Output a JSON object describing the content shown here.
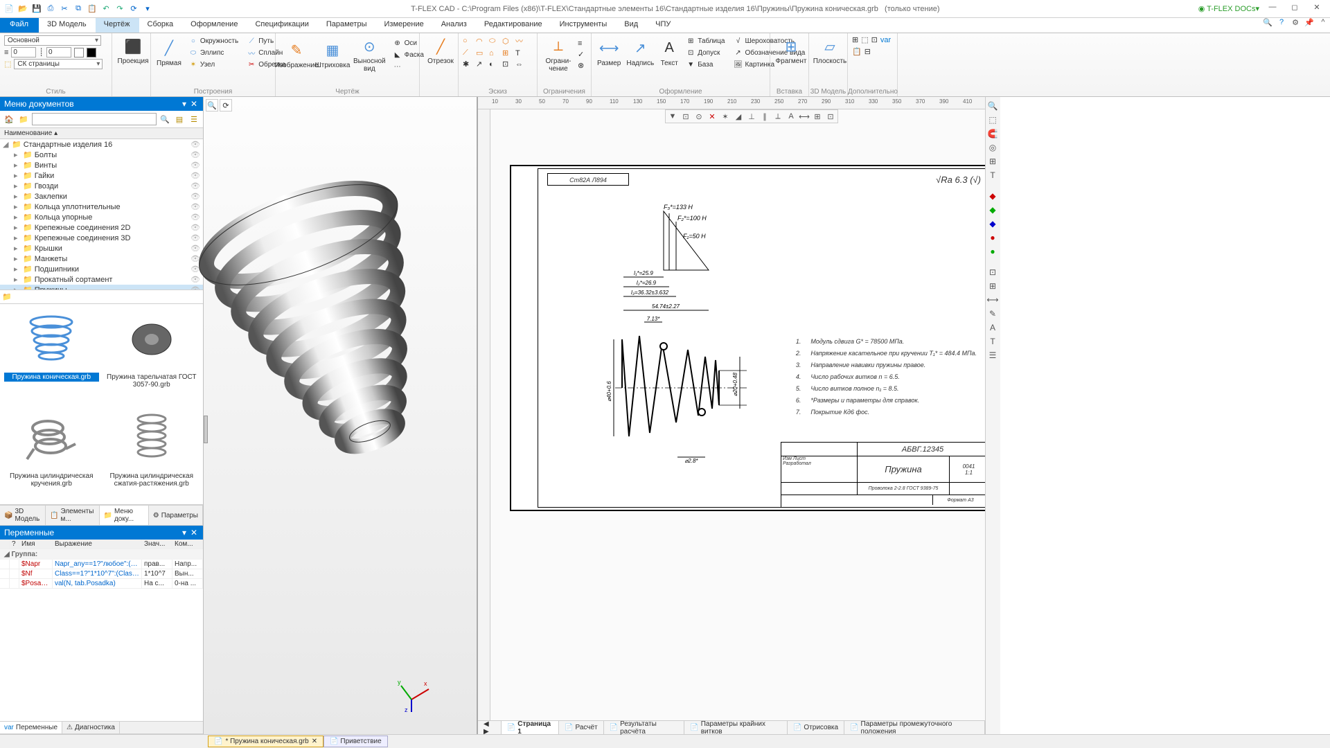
{
  "titlebar": {
    "app": "T-FLEX CAD",
    "path": "C:\\Program Files (x86)\\T-FLEX\\Стандартные элементы 16\\Стандартные изделия 16\\Пружины\\Пружина коническая.grb",
    "readonly": "(только чтение)",
    "docs": "T-FLEX DOCs"
  },
  "tabs": {
    "file": "Файл",
    "items": [
      "3D Модель",
      "Чертёж",
      "Сборка",
      "Оформление",
      "Спецификации",
      "Параметры",
      "Измерение",
      "Анализ",
      "Редактирование",
      "Инструменты",
      "Вид",
      "ЧПУ"
    ],
    "active": 1
  },
  "ribbon": {
    "style": {
      "label": "Стиль",
      "main": "Основной",
      "layer": "СК страницы",
      "thick1": "0",
      "thick2": "0"
    },
    "proj": {
      "label": "Проекция"
    },
    "build": {
      "label": "Построения",
      "line": "Прямая",
      "circle": "Окружность",
      "ellipse": "Эллипс",
      "node": "Узел",
      "path": "Путь",
      "spline": "Сплайн",
      "trim": "Обрезка"
    },
    "sketch": {
      "label": "Чертёж",
      "image": "Изображение",
      "hatch": "Штриховка",
      "dimview": "Выносной вид",
      "axis": "Оси",
      "chamfer": "Фаска"
    },
    "seg": {
      "label": "Отрезок"
    },
    "esk": {
      "label": "Эскиз"
    },
    "constr": {
      "label": "Ограничения",
      "limit": "Ограни-\nчение"
    },
    "format": {
      "label": "Оформление",
      "dim": "Размер",
      "note": "Надпись",
      "text": "Текст",
      "table": "Таблица",
      "tol": "Допуск",
      "base": "База",
      "rough": "Шероховатость",
      "mark": "Обозначение вида",
      "pic": "Картинка"
    },
    "insert": {
      "label": "Вставка",
      "frag": "Фрагмент"
    },
    "m3d": {
      "label": "3D Модель",
      "plane": "Плоскость"
    },
    "extra": {
      "label": "Дополнительно"
    }
  },
  "docmenu": {
    "title": "Меню документов",
    "colname": "Наименование",
    "root": "Стандартные изделия 16",
    "folders": [
      "Болты",
      "Винты",
      "Гайки",
      "Гвозди",
      "Заклепки",
      "Кольца уплотнительные",
      "Кольца упорные",
      "Крепежные соединения 2D",
      "Крепежные соединения 3D",
      "Крышки",
      "Манжеты",
      "Подшипники",
      "Прокатный сортамент",
      "Пружины"
    ],
    "thumbs": [
      {
        "cap": "Пружина коническая.grb",
        "sel": true
      },
      {
        "cap": "Пружина тарельчатая ГОСТ 3057-90.grb"
      },
      {
        "cap": "Пружина цилиндрическая кручения.grb"
      },
      {
        "cap": "Пружина цилиндрическая сжатия-растяжения.grb"
      }
    ],
    "btabs": [
      "3D Модель",
      "Элементы м...",
      "Меню доку...",
      "Параметры"
    ],
    "btab_act": 2
  },
  "vars": {
    "title": "Переменные",
    "cols": [
      "",
      "?",
      "Имя",
      "Выражение",
      "Знач...",
      "Ком..."
    ],
    "group": "Группа:",
    "rows": [
      {
        "n": "$Napr",
        "e": "Napr_any==1?\"любое\":(Napr==...",
        "v": "прав...",
        "c": "Напр..."
      },
      {
        "n": "$Nf",
        "e": "Class==1?\"1*10^7\":(Class==2?\"...",
        "v": "1*10^7",
        "c": "Вын..."
      },
      {
        "n": "$Posac...",
        "e": "val(N, tab.Posadka)",
        "v": "На с...",
        "c": "0-на ..."
      }
    ],
    "btabs": [
      "Переменные",
      "Диагностика"
    ]
  },
  "drawing": {
    "material": "Ст82А Л894",
    "roughness": "Ra 6.3",
    "forces": {
      "f3": "F₃*=133 Н",
      "f2": "F₂*=100 Н",
      "f1": "F₁=50 Н"
    },
    "dims": {
      "l1": "l₁*=25.9",
      "l2": "l₂*=26.9",
      "l3": "l₃=36.32±3.632",
      "l4": "54.74±2.27",
      "d1": "7.13*",
      "dia1": "⌀40+0.6",
      "dia2": "⌀20+0.48",
      "dia3": "⌀2.8*"
    },
    "notes": [
      {
        "n": "1.",
        "t": "Модуль сдвига G* = 78500 МПа."
      },
      {
        "n": "2.",
        "t": "Напряжение касательное при кручении Т₁* = 484.4 МПа."
      },
      {
        "n": "3.",
        "t": "Направление навивки пружины правое."
      },
      {
        "n": "4.",
        "t": "Число рабочих витков n = 6.5."
      },
      {
        "n": "5.",
        "t": "Число витков полное n₁ = 8.5."
      },
      {
        "n": "6.",
        "t": "*Размеры и параметры для справок."
      },
      {
        "n": "7.",
        "t": "Покрытие Кд6 фос."
      }
    ],
    "titleblock": {
      "code": "АБВГ.12345",
      "name": "Пружина",
      "sub": "Проволока 2-2.8 ГОСТ 9389-75",
      "num": "0041",
      "zone": "1:1",
      "fmt": "Формат   А3",
      "dev": "Разработал"
    },
    "ruler_nums": [
      "10",
      "30",
      "50",
      "70",
      "90",
      "110",
      "130",
      "150",
      "170",
      "190",
      "210",
      "230",
      "250",
      "270",
      "290",
      "310",
      "330",
      "350",
      "370",
      "390",
      "410"
    ]
  },
  "pagetabs": {
    "items": [
      "Страница 1",
      "Расчёт",
      "Результаты расчёта",
      "Параметры крайних витков",
      "Отрисовка",
      "Параметры промежуточного положения"
    ],
    "active": 0
  },
  "doctabs": {
    "active": "* Пружина коническая.grb",
    "other": "Приветствие"
  }
}
